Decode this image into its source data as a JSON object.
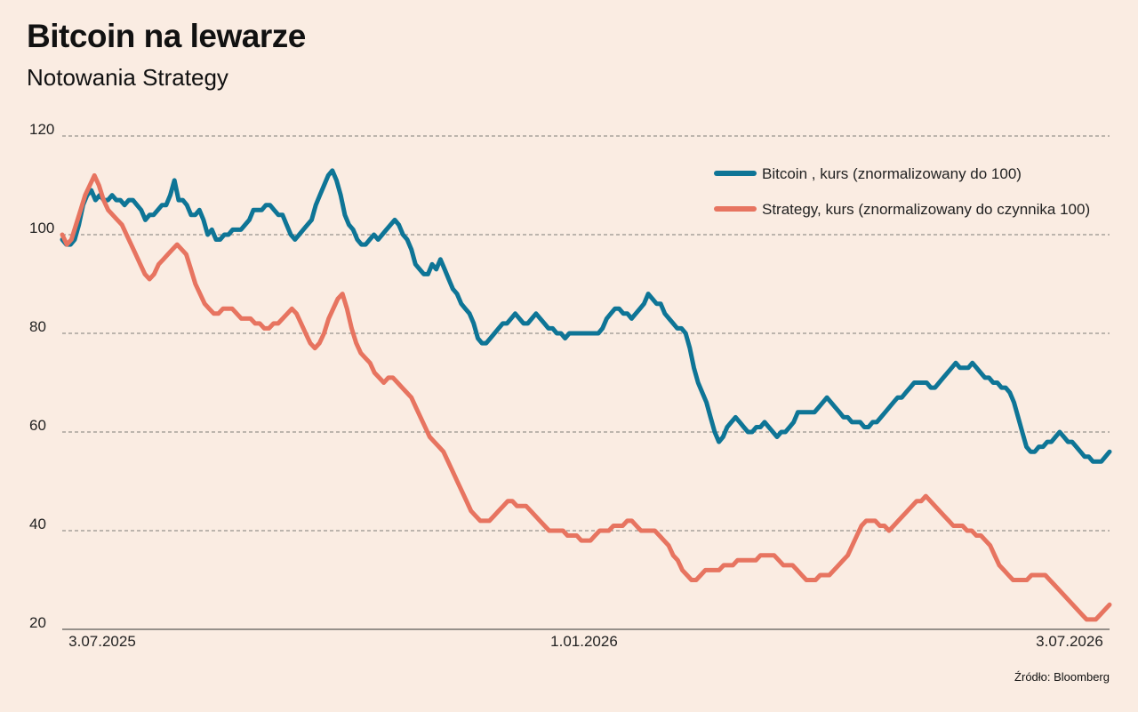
{
  "header": {
    "title": "Bitcoin na lewarze",
    "subtitle": "Notowania Strategy"
  },
  "footer": {
    "source": "Źródło: Bloomberg"
  },
  "chart_data": {
    "type": "line",
    "title": "Bitcoin na lewarze",
    "subtitle": "Notowania Strategy",
    "xlabel": "",
    "ylabel": "",
    "ylim": [
      20,
      120
    ],
    "yticks": [
      20,
      40,
      60,
      80,
      100,
      120
    ],
    "x_tick_labels": [
      "3.07.2025",
      "1.01.2026",
      "3.07.2026"
    ],
    "grid": true,
    "legend_position": "top-right",
    "series": [
      {
        "name": "Bitcoin , kurs (znormalizowany do 100)",
        "color": "#0e7596",
        "values": [
          99,
          98,
          98,
          99,
          102,
          106,
          108,
          109,
          107,
          108,
          107,
          107,
          108,
          107,
          107,
          106,
          107,
          107,
          106,
          105,
          103,
          104,
          104,
          105,
          106,
          106,
          108,
          111,
          107,
          107,
          106,
          104,
          104,
          105,
          103,
          100,
          101,
          99,
          99,
          100,
          100,
          101,
          101,
          101,
          102,
          103,
          105,
          105,
          105,
          106,
          106,
          105,
          104,
          104,
          102,
          100,
          99,
          100,
          101,
          102,
          103,
          106,
          108,
          110,
          112,
          113,
          111,
          108,
          104,
          102,
          101,
          99,
          98,
          98,
          99,
          100,
          99,
          100,
          101,
          102,
          103,
          102,
          100,
          99,
          97,
          94,
          93,
          92,
          92,
          94,
          93,
          95,
          93,
          91,
          89,
          88,
          86,
          85,
          84,
          82,
          79,
          78,
          78,
          79,
          80,
          81,
          82,
          82,
          83,
          84,
          83,
          82,
          82,
          83,
          84,
          83,
          82,
          81,
          81,
          80,
          80,
          79,
          80,
          80,
          80,
          80,
          80,
          80,
          80,
          80,
          81,
          83,
          84,
          85,
          85,
          84,
          84,
          83,
          84,
          85,
          86,
          88,
          87,
          86,
          86,
          84,
          83,
          82,
          81,
          81,
          80,
          77,
          73,
          70,
          68,
          66,
          63,
          60,
          58,
          59,
          61,
          62,
          63,
          62,
          61,
          60,
          60,
          61,
          61,
          62,
          61,
          60,
          59,
          60,
          60,
          61,
          62,
          64,
          64,
          64,
          64,
          64,
          65,
          66,
          67,
          66,
          65,
          64,
          63,
          63,
          62,
          62,
          62,
          61,
          61,
          62,
          62,
          63,
          64,
          65,
          66,
          67,
          67,
          68,
          69,
          70,
          70,
          70,
          70,
          69,
          69,
          70,
          71,
          72,
          73,
          74,
          73,
          73,
          73,
          74,
          73,
          72,
          71,
          71,
          70,
          70,
          69,
          69,
          68,
          66,
          63,
          60,
          57,
          56,
          56,
          57,
          57,
          58,
          58,
          59,
          60,
          59,
          58,
          58,
          57,
          56,
          55,
          55,
          54,
          54,
          54,
          55,
          56
        ]
      },
      {
        "name": "Strategy, kurs (znormalizowany do czynnika 100)",
        "color": "#e77460",
        "values": [
          100,
          98,
          99,
          102,
          105,
          108,
          110,
          112,
          110,
          107,
          105,
          104,
          103,
          102,
          100,
          98,
          96,
          94,
          92,
          91,
          92,
          94,
          95,
          96,
          97,
          98,
          97,
          96,
          93,
          90,
          88,
          86,
          85,
          84,
          84,
          85,
          85,
          85,
          84,
          83,
          83,
          83,
          82,
          82,
          81,
          81,
          82,
          82,
          83,
          84,
          85,
          84,
          82,
          80,
          78,
          77,
          78,
          80,
          83,
          85,
          87,
          88,
          85,
          81,
          78,
          76,
          75,
          74,
          72,
          71,
          70,
          71,
          71,
          70,
          69,
          68,
          67,
          65,
          63,
          61,
          59,
          58,
          57,
          56,
          54,
          52,
          50,
          48,
          46,
          44,
          43,
          42,
          42,
          42,
          43,
          44,
          45,
          46,
          46,
          45,
          45,
          45,
          44,
          43,
          42,
          41,
          40,
          40,
          40,
          40,
          39,
          39,
          39,
          38,
          38,
          38,
          39,
          40,
          40,
          40,
          41,
          41,
          41,
          42,
          42,
          41,
          40,
          40,
          40,
          40,
          39,
          38,
          37,
          35,
          34,
          32,
          31,
          30,
          30,
          31,
          32,
          32,
          32,
          32,
          33,
          33,
          33,
          34,
          34,
          34,
          34,
          34,
          35,
          35,
          35,
          35,
          34,
          33,
          33,
          33,
          32,
          31,
          30,
          30,
          30,
          31,
          31,
          31,
          32,
          33,
          34,
          35,
          37,
          39,
          41,
          42,
          42,
          42,
          41,
          41,
          40,
          41,
          42,
          43,
          44,
          45,
          46,
          46,
          47,
          46,
          45,
          44,
          43,
          42,
          41,
          41,
          41,
          40,
          40,
          39,
          39,
          38,
          37,
          35,
          33,
          32,
          31,
          30,
          30,
          30,
          30,
          31,
          31,
          31,
          31,
          30,
          29,
          28,
          27,
          26,
          25,
          24,
          23,
          22,
          22,
          22,
          23,
          24,
          25
        ]
      }
    ]
  }
}
